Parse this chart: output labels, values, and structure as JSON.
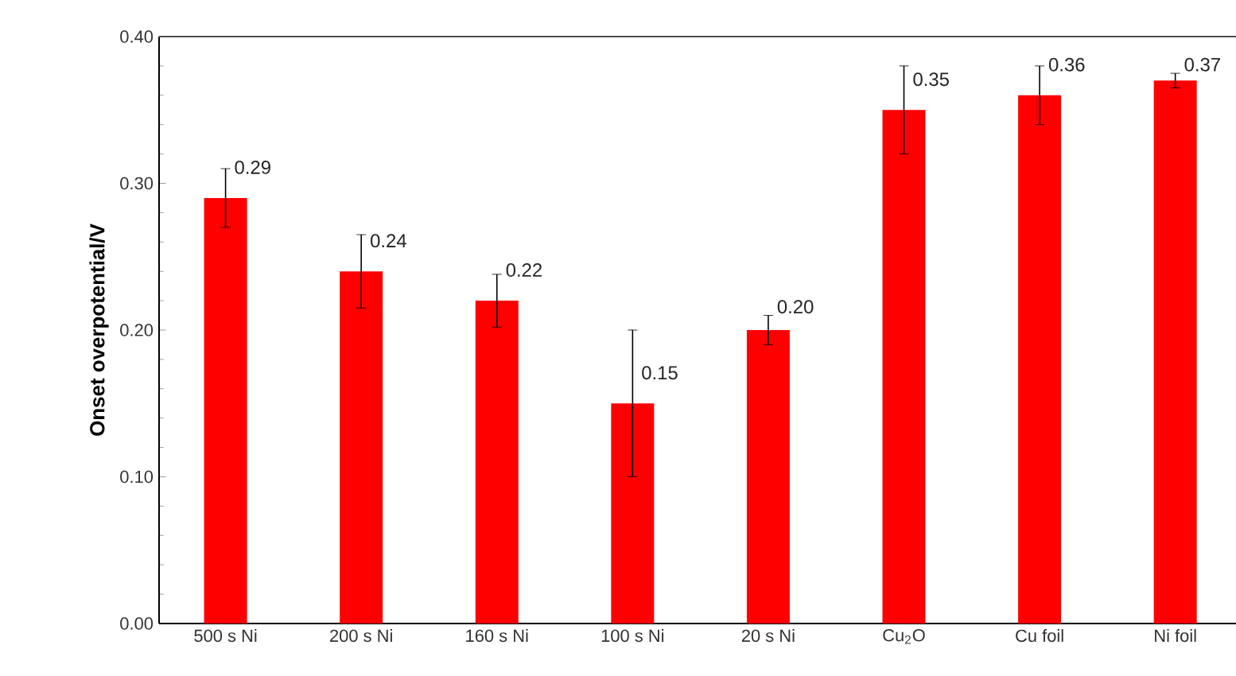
{
  "chart_data": {
    "type": "bar",
    "ylabel": "Onset overpotential/V",
    "categories": [
      "500 s Ni",
      "200 s Ni",
      "160 s Ni",
      "100 s Ni",
      "20 s Ni",
      "Cu$_{2}$O",
      "Cu foil",
      "Ni foil"
    ],
    "values": [
      0.29,
      0.24,
      0.22,
      0.15,
      0.2,
      0.35,
      0.36,
      0.37
    ],
    "errors": [
      0.02,
      0.025,
      0.018,
      0.05,
      0.01,
      0.03,
      0.02,
      0.005
    ],
    "value_labels": [
      "0.29",
      "0.24",
      "0.22",
      "0.15",
      "0.20",
      "0.35",
      "0.36",
      "0.37"
    ],
    "color": "#ff0000",
    "ylim": [
      0,
      0.4
    ],
    "yticks": [
      {
        "value": 0,
        "label": "0.00"
      },
      {
        "value": 0.1,
        "label": "0.10"
      },
      {
        "value": 0.2,
        "label": "0.20"
      },
      {
        "value": 0.3,
        "label": "0.30"
      },
      {
        "value": 0.4,
        "label": "0.40"
      }
    ],
    "grid": false
  }
}
